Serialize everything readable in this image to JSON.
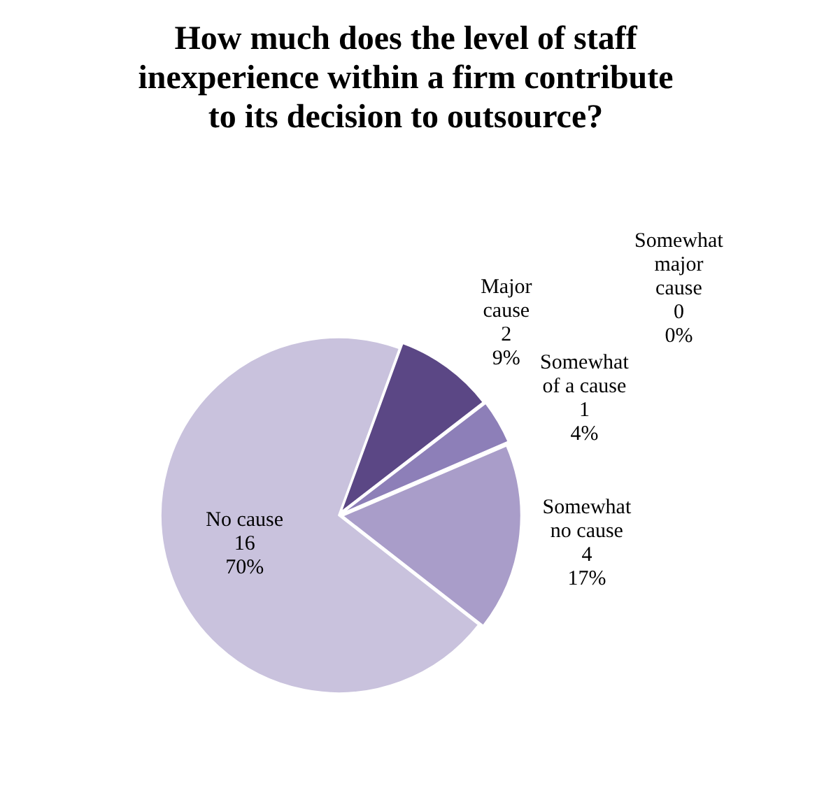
{
  "chart_data": {
    "type": "pie",
    "title": "How much does the level of staff inexperience within a firm contribute to its decision to outsource?",
    "categories": [
      "Major cause",
      "Somewhat major cause",
      "Somewhat of a cause",
      "Somewhat no cause",
      "No cause"
    ],
    "values": [
      9,
      0,
      4,
      17,
      70
    ],
    "value_labels": [
      "2\n9%",
      "0\n0%",
      "1\n4%",
      "4\n17%",
      "16\n70%"
    ],
    "colors": [
      "#5b4785",
      "#7761a6",
      "#8d7fb8",
      "#a99dc9",
      "#c9c2dd"
    ],
    "legend": false
  }
}
